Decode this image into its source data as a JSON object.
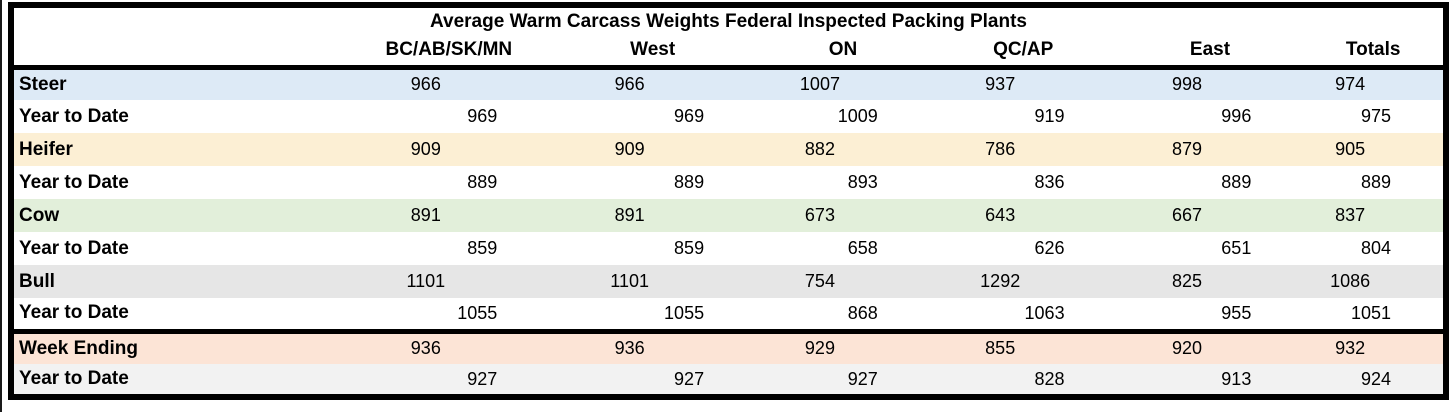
{
  "chart_data": {
    "type": "table",
    "title": "Average Warm Carcass Weights Federal Inspected Packing Plants",
    "columns": [
      "BC/AB/SK/MN",
      "West",
      "ON",
      "QC/AP",
      "East",
      "Totals"
    ],
    "rows": [
      {
        "label": "Steer",
        "kind": "category",
        "fill": "#DDEAF6",
        "thick_top": false,
        "values": [
          "966",
          "966",
          "1007",
          "937",
          "998",
          "974"
        ]
      },
      {
        "label": "Year to Date",
        "kind": "ytd",
        "fill": "#FFFFFF",
        "thick_top": false,
        "values": [
          "969",
          "969",
          "1009",
          "919",
          "996",
          "975"
        ]
      },
      {
        "label": "Heifer",
        "kind": "category",
        "fill": "#FCEFD4",
        "thick_top": false,
        "values": [
          "909",
          "909",
          "882",
          "786",
          "879",
          "905"
        ]
      },
      {
        "label": "Year to Date",
        "kind": "ytd",
        "fill": "#FFFFFF",
        "thick_top": false,
        "values": [
          "889",
          "889",
          "893",
          "836",
          "889",
          "889"
        ]
      },
      {
        "label": "Cow",
        "kind": "category",
        "fill": "#E2EFDA",
        "thick_top": false,
        "values": [
          "891",
          "891",
          "673",
          "643",
          "667",
          "837"
        ]
      },
      {
        "label": "Year to Date",
        "kind": "ytd",
        "fill": "#FFFFFF",
        "thick_top": false,
        "values": [
          "859",
          "859",
          "658",
          "626",
          "651",
          "804"
        ]
      },
      {
        "label": "Bull",
        "kind": "category",
        "fill": "#E6E6E6",
        "thick_top": false,
        "values": [
          "1101",
          "1101",
          "754",
          "1292",
          "825",
          "1086"
        ]
      },
      {
        "label": "Year to Date",
        "kind": "ytd",
        "fill": "#FFFFFF",
        "thick_top": false,
        "values": [
          "1055",
          "1055",
          "868",
          "1063",
          "955",
          "1051"
        ]
      },
      {
        "label": "Week Ending",
        "kind": "category",
        "fill": "#FCE4D6",
        "thick_top": true,
        "values": [
          "936",
          "936",
          "929",
          "855",
          "920",
          "932"
        ]
      },
      {
        "label": "Year to Date",
        "kind": "ytd",
        "fill": "#F2F2F2",
        "thick_top": false,
        "values": [
          "927",
          "927",
          "927",
          "828",
          "913",
          "924"
        ]
      }
    ],
    "layout": {
      "border_color": "#000000",
      "background": "#FFFFFF",
      "grid": "off",
      "category_value_align": "center",
      "ytd_value_align": "right"
    }
  }
}
